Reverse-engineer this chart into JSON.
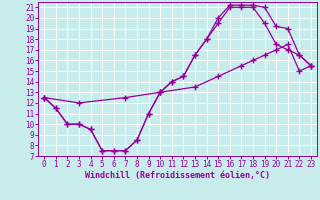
{
  "xlabel": "Windchill (Refroidissement éolien,°C)",
  "bg_color": "#c8ecec",
  "grid_color": "#ffffff",
  "line_color": "#990099",
  "xlim": [
    -0.5,
    23.5
  ],
  "ylim": [
    7,
    21.5
  ],
  "xticks": [
    0,
    1,
    2,
    3,
    4,
    5,
    6,
    7,
    8,
    9,
    10,
    11,
    12,
    13,
    14,
    15,
    16,
    17,
    18,
    19,
    20,
    21,
    22,
    23
  ],
  "yticks": [
    7,
    8,
    9,
    10,
    11,
    12,
    13,
    14,
    15,
    16,
    17,
    18,
    19,
    20,
    21
  ],
  "line1_x": [
    0,
    1,
    2,
    3,
    4,
    5,
    6,
    7,
    8,
    9,
    10,
    11,
    12,
    13,
    14,
    15,
    16,
    17,
    18,
    19,
    20,
    21,
    22,
    23
  ],
  "line1_y": [
    12.5,
    11.5,
    10.0,
    10.0,
    9.5,
    7.5,
    7.5,
    7.5,
    8.5,
    11.0,
    13.0,
    14.0,
    14.5,
    16.5,
    18.0,
    19.5,
    21.0,
    21.0,
    21.0,
    19.5,
    17.5,
    17.0,
    16.5,
    15.5
  ],
  "line2_x": [
    0,
    1,
    2,
    3,
    4,
    5,
    6,
    7,
    8,
    9,
    10,
    11,
    12,
    13,
    14,
    15,
    16,
    17,
    18,
    19,
    20,
    21,
    22,
    23
  ],
  "line2_y": [
    12.5,
    11.5,
    10.0,
    10.0,
    9.5,
    7.5,
    7.5,
    7.5,
    8.5,
    11.0,
    13.0,
    14.0,
    14.5,
    16.5,
    18.0,
    20.0,
    21.2,
    21.2,
    21.2,
    21.0,
    19.2,
    19.0,
    16.5,
    15.5
  ],
  "line3_x": [
    0,
    3,
    7,
    10,
    13,
    15,
    17,
    18,
    19,
    20,
    21,
    22,
    23
  ],
  "line3_y": [
    12.5,
    12.0,
    12.5,
    13.0,
    13.5,
    14.5,
    15.5,
    16.0,
    16.5,
    17.0,
    17.5,
    15.0,
    15.5
  ],
  "marker": "+",
  "markersize": 4,
  "linewidth": 0.9,
  "axis_fontsize": 6,
  "tick_fontsize": 5.5
}
